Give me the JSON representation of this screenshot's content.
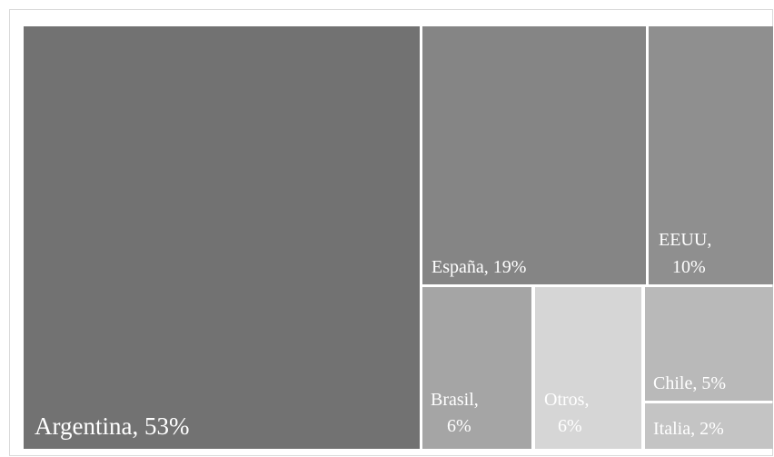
{
  "chart_data": {
    "type": "treemap",
    "title": "",
    "unit": "%",
    "items": [
      {
        "name": "Argentina",
        "value": 53,
        "label": "Argentina, 53%",
        "color": "#727272"
      },
      {
        "name": "España",
        "value": 19,
        "label": "España, 19%",
        "color": "#858585"
      },
      {
        "name": "EEUU",
        "value": 10,
        "label": "EEUU, 10%",
        "color": "#8f8f8f"
      },
      {
        "name": "Brasil",
        "value": 6,
        "label": "Brasil, 6%",
        "color": "#a5a5a5"
      },
      {
        "name": "Otros",
        "value": 6,
        "label": "Otros, 6%",
        "color": "#d6d6d6"
      },
      {
        "name": "Chile",
        "value": 5,
        "label": "Chile, 5%",
        "color": "#b9b9b9"
      },
      {
        "name": "Italia",
        "value": 2,
        "label": "Italia, 2%",
        "color": "#c4c4c4"
      }
    ]
  }
}
